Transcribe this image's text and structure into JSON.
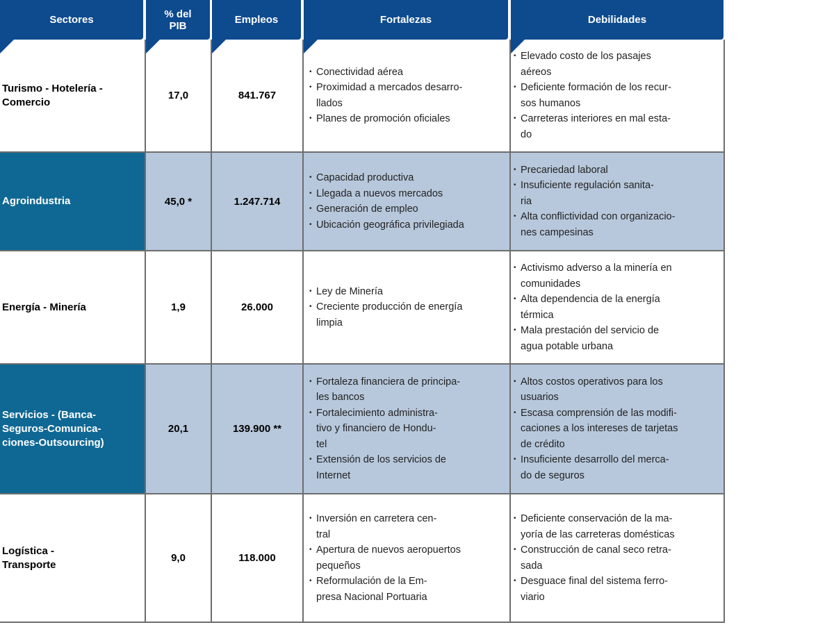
{
  "headers": [
    "Sectores",
    "% del\nPIB",
    "Empleos",
    "Fortalezas",
    "Debilidades"
  ],
  "colors": {
    "header": "#0d4a8e",
    "sector_shaded": "#0f6894",
    "row_shaded": "#b7c8dc"
  },
  "rows": [
    {
      "sector": "Turismo - Hotelería -\n  Comercio",
      "pib": "17,0",
      "empleos": "841.767",
      "fortalezas": [
        "Conectividad aérea",
        "Proximidad a mercados desarro-\nllados",
        "Planes de promoción oficiales"
      ],
      "debilidades": [
        "Elevado costo de los pasajes\naéreos",
        "Deficiente formación de los recur-\nsos humanos",
        "Carreteras interiores en mal esta-\ndo"
      ]
    },
    {
      "sector": "Agroindustria",
      "pib": "45,0 *",
      "empleos": "1.247.714",
      "fortalezas": [
        "Capacidad productiva",
        "Llegada a nuevos mercados",
        "Generación de empleo",
        "Ubicación geográfica privilegiada"
      ],
      "debilidades": [
        "Precariedad laboral",
        "Insuficiente regulación sanita-\nria",
        "Alta conflictividad con organizacio-\nnes campesinas"
      ]
    },
    {
      "sector": "Energía -  Minería",
      "pib": "1,9",
      "empleos": "26.000",
      "fortalezas": [
        "Ley de Minería",
        "Creciente producción de energía\nlimpia"
      ],
      "debilidades": [
        "Activismo adverso a la minería en\ncomunidades",
        "Alta dependencia de la energía\ntérmica",
        "Mala prestación del servicio de\nagua potable urbana"
      ]
    },
    {
      "sector": "Servicios - (Banca-\nSeguros-Comunica-\nciones-Outsourcing)",
      "pib": "20,1",
      "empleos": "139.900 **",
      "fortalezas": [
        "Fortaleza financiera de principa-\nles bancos",
        "Fortalecimiento administra-\ntivo y financiero de Hondu-\ntel",
        "Extensión de los servicios de\nInternet"
      ],
      "debilidades": [
        "Altos costos operativos para los\nusuarios",
        "Escasa comprensión de las modifi-\ncaciones a los intereses de tarjetas\nde crédito",
        "Insuficiente desarrollo del merca-\ndo de seguros"
      ]
    },
    {
      "sector": "Logística -\nTransporte",
      "pib": "9,0",
      "empleos": "118.000",
      "fortalezas": [
        "Inversión en carretera cen-\ntral",
        "Apertura de nuevos aeropuertos\npequeños",
        "Reformulación de la Em-\npresa Nacional Portuaria"
      ],
      "debilidades": [
        "Deficiente conservación de la ma-\nyoría de las carreteras domésticas",
        "Construcción de canal seco retra-\nsada",
        "Desguace final del sistema ferro-\nviario"
      ]
    }
  ]
}
